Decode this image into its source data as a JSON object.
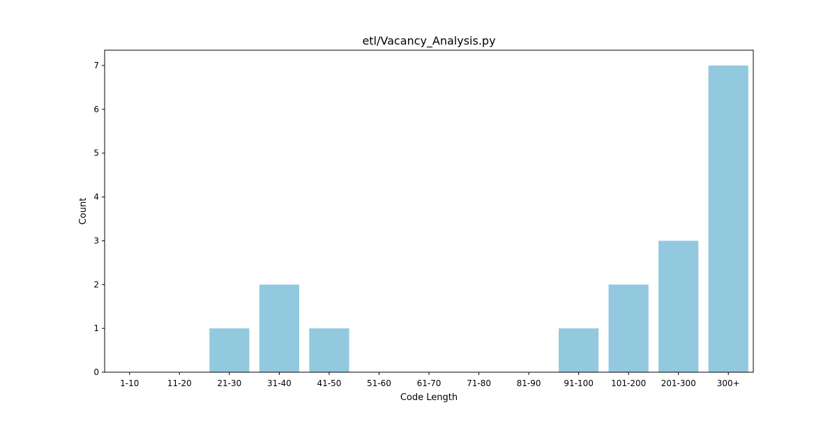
{
  "chart_data": {
    "type": "bar",
    "title": "etl/Vacancy_Analysis.py",
    "xlabel": "Code Length",
    "ylabel": "Count",
    "categories": [
      "1-10",
      "11-20",
      "21-30",
      "31-40",
      "41-50",
      "51-60",
      "61-70",
      "71-80",
      "81-90",
      "91-100",
      "101-200",
      "201-300",
      "300+"
    ],
    "values": [
      0,
      0,
      1,
      2,
      1,
      0,
      0,
      0,
      0,
      1,
      2,
      3,
      7
    ],
    "ylim": [
      0,
      7.35
    ],
    "yticks": [
      0,
      1,
      2,
      3,
      4,
      5,
      6,
      7
    ],
    "grid": false,
    "legend": "none",
    "bar_color": "#92c9df"
  }
}
